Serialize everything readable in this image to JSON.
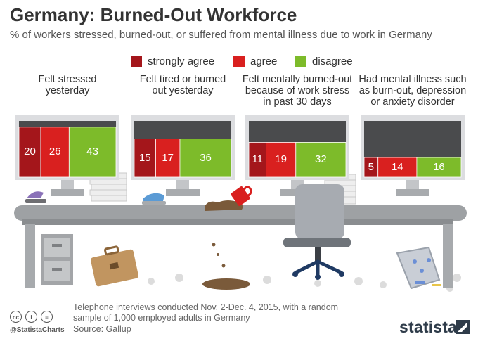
{
  "title": "Germany: Burned-Out Workforce",
  "subtitle": "% of workers stressed, burned-out, or suffered from mental illness due to work in Germany",
  "footer": {
    "note_line1": "Telephone interviews conducted Nov. 2-Dec. 4, 2015, with a random",
    "note_line2": "sample of 1,000 employed adults in Germany",
    "source": "Source: Gallup",
    "handle": "@StatistaCharts",
    "brand": "statista"
  },
  "icons": [
    "cc-icon",
    "attribution-icon",
    "equals-icon",
    "statista-logo-icon",
    "hole-punch-icon",
    "stapler-icon",
    "coffee-mug-icon",
    "office-chair-icon",
    "filing-cabinet-icon",
    "briefcase-icon",
    "wastebasket-icon",
    "paper-stack-icon"
  ],
  "chart_data": {
    "type": "bar",
    "stacked": true,
    "legend_position": "top-center",
    "series": [
      {
        "name": "strongly agree",
        "color": "#a4161b",
        "values": [
          20,
          15,
          11,
          5
        ]
      },
      {
        "name": "agree",
        "color": "#d9201f",
        "values": [
          26,
          17,
          19,
          14
        ]
      },
      {
        "name": "disagree",
        "color": "#7dbb2a",
        "values": [
          43,
          36,
          32,
          16
        ]
      }
    ],
    "categories": [
      {
        "line1": "Felt stressed",
        "line2": "yesterday",
        "line3": ""
      },
      {
        "line1": "Felt tired or burned",
        "line2": "out yesterday",
        "line3": ""
      },
      {
        "line1": "Felt mentally burned-out",
        "line2": "because of work stress",
        "line3": "in past 30 days"
      },
      {
        "line1": "Had mental illness such",
        "line2": "as burn-out, depression",
        "line3": "or anxiety disorder"
      }
    ],
    "ylim": [
      0,
      100
    ]
  }
}
